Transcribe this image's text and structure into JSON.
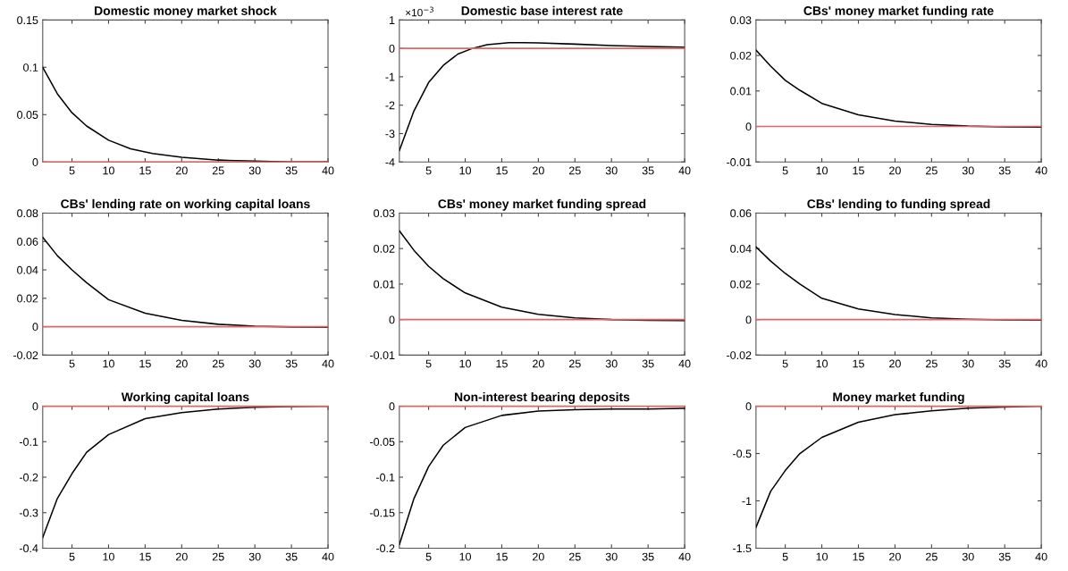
{
  "chart_data": [
    {
      "type": "line",
      "title": "Domestic money market shock",
      "series": [
        {
          "color": "#000000",
          "x": [
            1,
            3,
            5,
            7,
            10,
            13,
            16,
            20,
            25,
            30,
            35,
            40
          ],
          "values": [
            0.1,
            0.072,
            0.052,
            0.038,
            0.023,
            0.014,
            0.009,
            0.005,
            0.002,
            0.001,
            0.0,
            0.0
          ]
        }
      ],
      "xlim": [
        1,
        40
      ],
      "xticks": [
        5,
        10,
        15,
        20,
        25,
        30,
        35,
        40
      ],
      "ylim": [
        0,
        0.15
      ],
      "yticks": [
        0,
        0.05,
        0.1,
        0.15
      ],
      "ref_lines": [
        {
          "axis": "y",
          "value": 0,
          "color": "#e06666"
        }
      ],
      "grid": false
    },
    {
      "type": "line",
      "title": "Domestic base interest rate",
      "annotations": [
        "×10$^{−3}$"
      ],
      "series": [
        {
          "color": "#000000",
          "x": [
            1,
            3,
            5,
            7,
            9,
            11,
            13,
            16,
            18,
            20,
            25,
            30,
            35,
            40
          ],
          "values": [
            -3.6,
            -2.2,
            -1.2,
            -0.6,
            -0.2,
            0.0,
            0.13,
            0.2,
            0.2,
            0.19,
            0.15,
            0.1,
            0.07,
            0.04
          ]
        }
      ],
      "xlim": [
        1,
        40
      ],
      "xticks": [
        5,
        10,
        15,
        20,
        25,
        30,
        35,
        40
      ],
      "ylim": [
        -4,
        1
      ],
      "yticks": [
        -4,
        -3,
        -2,
        -1,
        0,
        1
      ],
      "ref_lines": [
        {
          "axis": "y",
          "value": 0,
          "color": "#e06666"
        }
      ],
      "grid": false
    },
    {
      "type": "line",
      "title": "CBs' money market funding rate",
      "series": [
        {
          "color": "#000000",
          "x": [
            1,
            3,
            5,
            7,
            10,
            15,
            20,
            25,
            30,
            35,
            40
          ],
          "values": [
            0.0215,
            0.017,
            0.013,
            0.0102,
            0.0065,
            0.0033,
            0.0015,
            0.0006,
            0.0001,
            -0.0001,
            -0.0002
          ]
        }
      ],
      "xlim": [
        1,
        40
      ],
      "xticks": [
        5,
        10,
        15,
        20,
        25,
        30,
        35,
        40
      ],
      "ylim": [
        -0.01,
        0.03
      ],
      "yticks": [
        -0.01,
        0,
        0.01,
        0.02,
        0.03
      ],
      "ref_lines": [
        {
          "axis": "y",
          "value": 0,
          "color": "#e06666"
        }
      ],
      "grid": false
    },
    {
      "type": "line",
      "title": "CBs' lending rate on working capital loans",
      "series": [
        {
          "color": "#000000",
          "x": [
            1,
            3,
            5,
            7,
            10,
            15,
            20,
            25,
            30,
            35,
            40
          ],
          "values": [
            0.063,
            0.05,
            0.04,
            0.031,
            0.019,
            0.0095,
            0.0045,
            0.0017,
            0.0004,
            -0.0002,
            -0.0004
          ]
        }
      ],
      "xlim": [
        1,
        40
      ],
      "xticks": [
        5,
        10,
        15,
        20,
        25,
        30,
        35,
        40
      ],
      "ylim": [
        -0.02,
        0.08
      ],
      "yticks": [
        -0.02,
        0,
        0.02,
        0.04,
        0.06,
        0.08
      ],
      "ref_lines": [
        {
          "axis": "y",
          "value": 0,
          "color": "#e06666"
        }
      ],
      "grid": false
    },
    {
      "type": "line",
      "title": "CBs' money market funding spread",
      "series": [
        {
          "color": "#000000",
          "x": [
            1,
            3,
            5,
            7,
            10,
            15,
            20,
            25,
            30,
            35,
            40
          ],
          "values": [
            0.025,
            0.0195,
            0.015,
            0.0115,
            0.0075,
            0.0035,
            0.0015,
            0.0005,
            0.0,
            -0.0002,
            -0.0003
          ]
        }
      ],
      "xlim": [
        1,
        40
      ],
      "xticks": [
        5,
        10,
        15,
        20,
        25,
        30,
        35,
        40
      ],
      "ylim": [
        -0.01,
        0.03
      ],
      "yticks": [
        -0.01,
        0,
        0.01,
        0.02,
        0.03
      ],
      "ref_lines": [
        {
          "axis": "y",
          "value": 0,
          "color": "#e06666"
        }
      ],
      "grid": false
    },
    {
      "type": "line",
      "title": "CBs' lending to funding spread",
      "series": [
        {
          "color": "#000000",
          "x": [
            1,
            3,
            5,
            7,
            10,
            15,
            20,
            25,
            30,
            35,
            40
          ],
          "values": [
            0.041,
            0.033,
            0.026,
            0.02,
            0.012,
            0.006,
            0.0028,
            0.001,
            0.0002,
            -0.0002,
            -0.0003
          ]
        }
      ],
      "xlim": [
        1,
        40
      ],
      "xticks": [
        5,
        10,
        15,
        20,
        25,
        30,
        35,
        40
      ],
      "ylim": [
        -0.02,
        0.06
      ],
      "yticks": [
        -0.02,
        0,
        0.02,
        0.04,
        0.06
      ],
      "ref_lines": [
        {
          "axis": "y",
          "value": 0,
          "color": "#e06666"
        }
      ],
      "grid": false
    },
    {
      "type": "line",
      "title": "Working capital loans",
      "series": [
        {
          "color": "#000000",
          "x": [
            1,
            3,
            5,
            7,
            10,
            15,
            20,
            25,
            30,
            35,
            40
          ],
          "values": [
            -0.37,
            -0.26,
            -0.19,
            -0.13,
            -0.08,
            -0.035,
            -0.018,
            -0.008,
            -0.003,
            -0.001,
            0.0
          ]
        }
      ],
      "xlim": [
        1,
        40
      ],
      "xticks": [
        5,
        10,
        15,
        20,
        25,
        30,
        35,
        40
      ],
      "ylim": [
        -0.4,
        0
      ],
      "yticks": [
        -0.4,
        -0.3,
        -0.2,
        -0.1,
        0
      ],
      "ref_lines": [
        {
          "axis": "y",
          "value": 0,
          "color": "#e06666"
        }
      ],
      "grid": false
    },
    {
      "type": "line",
      "title": "Non-interest bearing deposits",
      "series": [
        {
          "color": "#000000",
          "x": [
            1,
            3,
            5,
            7,
            10,
            15,
            20,
            25,
            30,
            35,
            40
          ],
          "values": [
            -0.195,
            -0.13,
            -0.085,
            -0.055,
            -0.03,
            -0.013,
            -0.007,
            -0.005,
            -0.004,
            -0.004,
            -0.003
          ]
        }
      ],
      "xlim": [
        1,
        40
      ],
      "xticks": [
        5,
        10,
        15,
        20,
        25,
        30,
        35,
        40
      ],
      "ylim": [
        -0.2,
        0
      ],
      "yticks": [
        -0.2,
        -0.15,
        -0.1,
        -0.05,
        0
      ],
      "ref_lines": [
        {
          "axis": "y",
          "value": 0,
          "color": "#e06666"
        }
      ],
      "grid": false
    },
    {
      "type": "line",
      "title": "Money market funding",
      "series": [
        {
          "color": "#000000",
          "x": [
            1,
            3,
            5,
            7,
            10,
            15,
            20,
            25,
            30,
            35,
            40
          ],
          "values": [
            -1.28,
            -0.9,
            -0.68,
            -0.5,
            -0.33,
            -0.17,
            -0.09,
            -0.05,
            -0.02,
            -0.01,
            0.0
          ]
        }
      ],
      "xlim": [
        1,
        40
      ],
      "xticks": [
        5,
        10,
        15,
        20,
        25,
        30,
        35,
        40
      ],
      "ylim": [
        -1.5,
        0
      ],
      "yticks": [
        -1.5,
        -1,
        -0.5,
        0
      ],
      "ref_lines": [
        {
          "axis": "y",
          "value": 0,
          "color": "#e06666"
        }
      ],
      "grid": false
    }
  ]
}
